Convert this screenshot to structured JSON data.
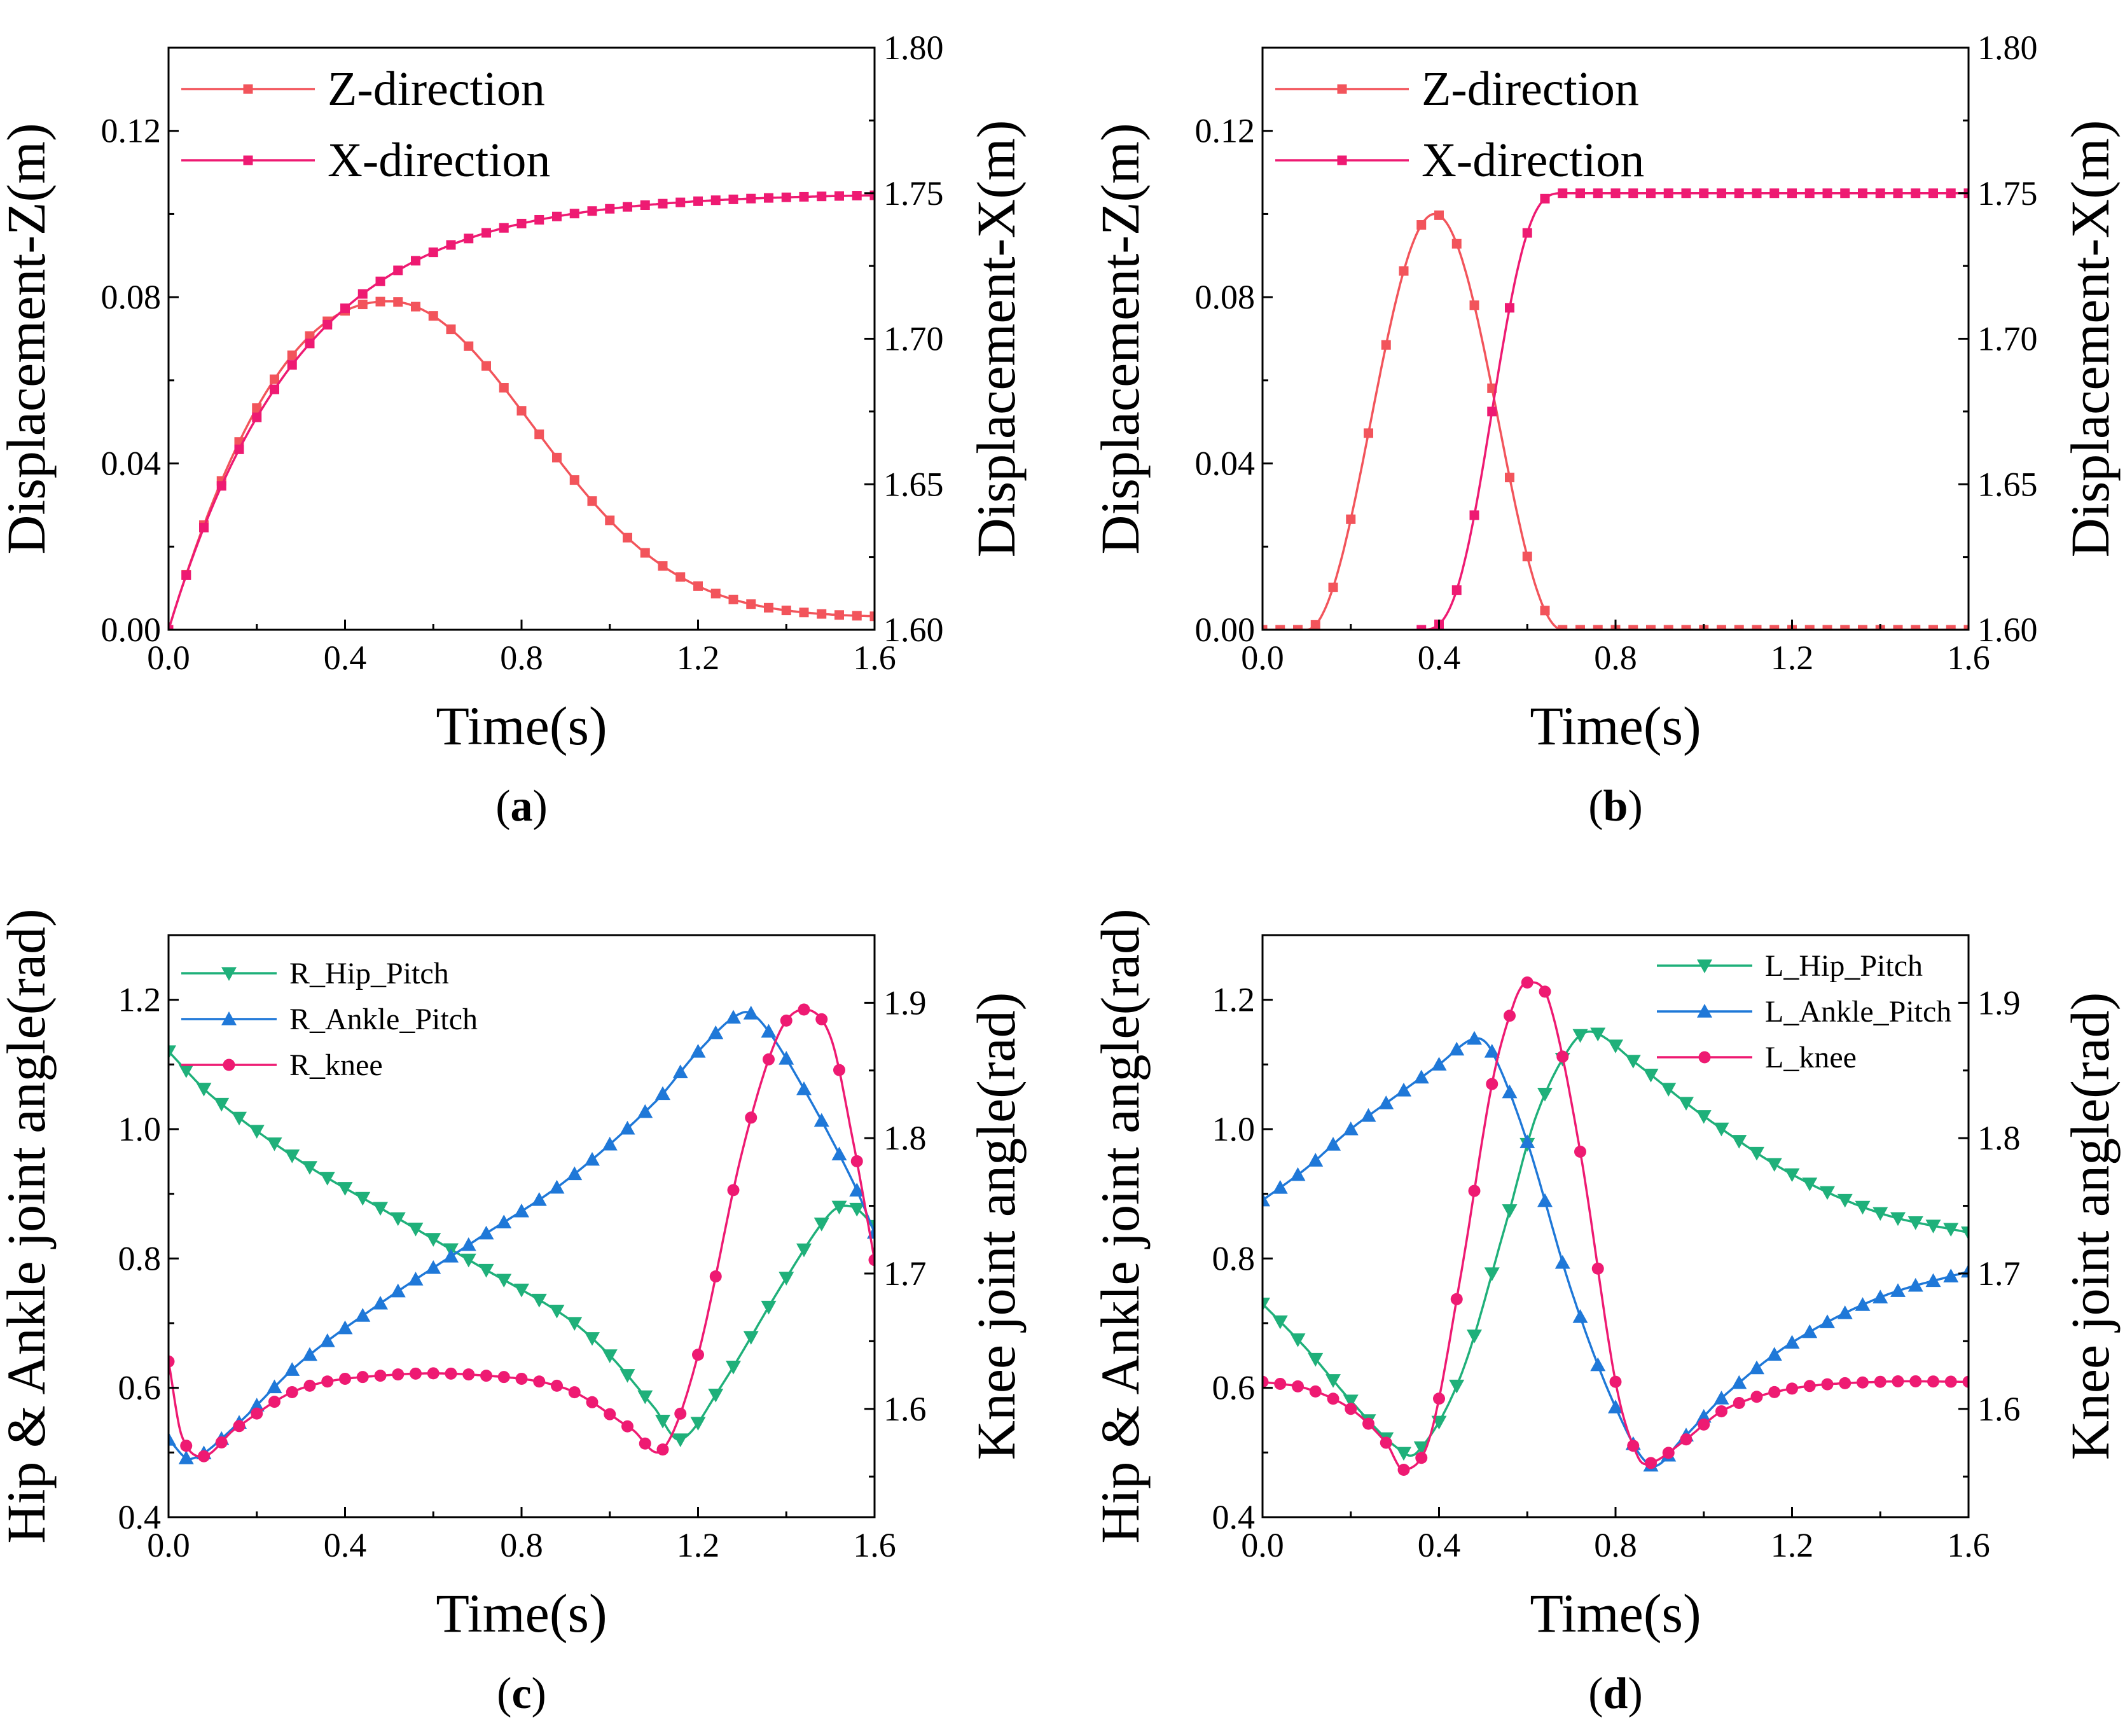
{
  "figure": {
    "caption_letters": [
      "(a)",
      "(b)",
      "(c)",
      "(d)"
    ]
  },
  "chart_data": [
    {
      "id": "a",
      "caption": "(a)",
      "type": "line",
      "xlabel": "Time(s)",
      "ylabel": "Displacement-Z(m)",
      "y2label": "Displacement-X(m)",
      "xlim": [
        0,
        1.6
      ],
      "ylim": [
        0,
        0.14
      ],
      "y2lim": [
        1.6,
        1.8
      ],
      "xticks": [
        "0.0",
        "0.4",
        "0.8",
        "1.2",
        "1.6"
      ],
      "yticks": [
        "0.00",
        "0.04",
        "0.08",
        "0.12"
      ],
      "y2ticks": [
        "1.60",
        "1.65",
        "1.70",
        "1.75",
        "1.80"
      ],
      "legend_position": "top-left",
      "series": [
        {
          "name": "Z-direction",
          "axis": "left",
          "color": "#f2545b",
          "marker": "square",
          "model": "zbell_a"
        },
        {
          "name": "X-direction",
          "axis": "right",
          "color": "#ee1a72",
          "marker": "square",
          "model": "xexp_a"
        }
      ]
    },
    {
      "id": "b",
      "caption": "(b)",
      "type": "line",
      "xlabel": "Time(s)",
      "ylabel": "Displacement-Z(m)",
      "y2label": "Displacement-X(m)",
      "xlim": [
        0,
        1.6
      ],
      "ylim": [
        0,
        0.14
      ],
      "y2lim": [
        1.6,
        1.8
      ],
      "xticks": [
        "0.0",
        "0.4",
        "0.8",
        "1.2",
        "1.6"
      ],
      "yticks": [
        "0.00",
        "0.04",
        "0.08",
        "0.12"
      ],
      "y2ticks": [
        "1.60",
        "1.65",
        "1.70",
        "1.75",
        "1.80"
      ],
      "legend_position": "top-left",
      "series": [
        {
          "name": "Z-direction",
          "axis": "left",
          "color": "#f2545b",
          "marker": "square",
          "model": "zcos_b"
        },
        {
          "name": "X-direction",
          "axis": "right",
          "color": "#ee1a72",
          "marker": "square",
          "model": "xramp_b"
        }
      ]
    },
    {
      "id": "c",
      "caption": "(c)",
      "type": "line",
      "xlabel": "Time(s)",
      "ylabel": "Hip & Ankle joint angle(rad)",
      "y2label": "Knee joint angle(rad)",
      "xlim": [
        0,
        1.6
      ],
      "ylim": [
        0.4,
        1.3
      ],
      "y2lim": [
        1.52,
        1.95
      ],
      "xticks": [
        "0.0",
        "0.4",
        "0.8",
        "1.2",
        "1.6"
      ],
      "yticks": [
        "0.4",
        "0.6",
        "0.8",
        "1.0",
        "1.2"
      ],
      "y2ticks": [
        "1.6",
        "1.7",
        "1.8",
        "1.9"
      ],
      "legend_position": "top-left",
      "series": [
        {
          "name": "R_Hip_Pitch",
          "axis": "left",
          "color": "#1fb07a",
          "marker": "triangle-down",
          "x": [
            0,
            0.1,
            0.3,
            0.5,
            0.7,
            0.9,
            1.0,
            1.1,
            1.16,
            1.25,
            1.4,
            1.5,
            1.55,
            1.6
          ],
          "y": [
            1.12,
            1.05,
            0.95,
            0.87,
            0.79,
            0.71,
            0.65,
            0.57,
            0.52,
            0.6,
            0.77,
            0.87,
            0.88,
            0.85
          ]
        },
        {
          "name": "R_Ankle_Pitch",
          "axis": "left",
          "color": "#1f78d8",
          "marker": "triangle-up",
          "x": [
            0,
            0.05,
            0.15,
            0.3,
            0.5,
            0.7,
            0.9,
            1.1,
            1.2,
            1.3,
            1.35,
            1.45,
            1.55,
            1.6
          ],
          "y": [
            0.52,
            0.49,
            0.54,
            0.64,
            0.74,
            0.83,
            0.92,
            1.04,
            1.12,
            1.18,
            1.16,
            1.05,
            0.92,
            0.84
          ]
        },
        {
          "name": "R_knee",
          "axis": "right",
          "color": "#ee1a72",
          "marker": "circle",
          "x": [
            0,
            0.03,
            0.08,
            0.15,
            0.3,
            0.5,
            0.7,
            0.9,
            1.05,
            1.12,
            1.2,
            1.3,
            1.38,
            1.44,
            1.5,
            1.55,
            1.6
          ],
          "y": [
            1.635,
            1.58,
            1.565,
            1.585,
            1.615,
            1.625,
            1.625,
            1.615,
            1.585,
            1.57,
            1.64,
            1.79,
            1.875,
            1.895,
            1.875,
            1.8,
            1.71
          ]
        }
      ]
    },
    {
      "id": "d",
      "caption": "(d)",
      "type": "line",
      "xlabel": "Time(s)",
      "ylabel": "Hip & Ankle joint angle(rad)",
      "y2label": "Knee joint angle(rad)",
      "xlim": [
        0,
        1.6
      ],
      "ylim": [
        0.4,
        1.3
      ],
      "y2lim": [
        1.52,
        1.95
      ],
      "xticks": [
        "0.0",
        "0.4",
        "0.8",
        "1.2",
        "1.6"
      ],
      "yticks": [
        "0.4",
        "0.6",
        "0.8",
        "1.0",
        "1.2"
      ],
      "y2ticks": [
        "1.6",
        "1.7",
        "1.8",
        "1.9"
      ],
      "legend_position": "top-right",
      "series": [
        {
          "name": "L_Hip_Pitch",
          "axis": "left",
          "color": "#1fb07a",
          "marker": "triangle-down",
          "x": [
            0,
            0.1,
            0.2,
            0.3,
            0.35,
            0.45,
            0.55,
            0.62,
            0.7,
            0.75,
            0.85,
            1.0,
            1.2,
            1.4,
            1.6
          ],
          "y": [
            0.73,
            0.66,
            0.58,
            0.51,
            0.5,
            0.62,
            0.85,
            1.02,
            1.13,
            1.15,
            1.1,
            1.02,
            0.93,
            0.87,
            0.84
          ]
        },
        {
          "name": "L_Ankle_Pitch",
          "axis": "left",
          "color": "#1f78d8",
          "marker": "triangle-up",
          "x": [
            0,
            0.1,
            0.2,
            0.3,
            0.4,
            0.48,
            0.52,
            0.6,
            0.7,
            0.8,
            0.88,
            0.95,
            1.05,
            1.2,
            1.4,
            1.6
          ],
          "y": [
            0.89,
            0.94,
            1.0,
            1.05,
            1.1,
            1.14,
            1.12,
            0.98,
            0.75,
            0.57,
            0.48,
            0.52,
            0.59,
            0.67,
            0.74,
            0.78
          ]
        },
        {
          "name": "L_knee",
          "axis": "right",
          "color": "#ee1a72",
          "marker": "circle",
          "x": [
            0,
            0.1,
            0.2,
            0.28,
            0.32,
            0.38,
            0.45,
            0.52,
            0.57,
            0.6,
            0.65,
            0.72,
            0.8,
            0.85,
            0.88,
            0.95,
            1.05,
            1.2,
            1.4,
            1.6
          ],
          "y": [
            1.62,
            1.615,
            1.6,
            1.575,
            1.555,
            1.58,
            1.7,
            1.84,
            1.9,
            1.915,
            1.9,
            1.79,
            1.62,
            1.565,
            1.56,
            1.575,
            1.6,
            1.615,
            1.62,
            1.62
          ]
        }
      ]
    }
  ]
}
